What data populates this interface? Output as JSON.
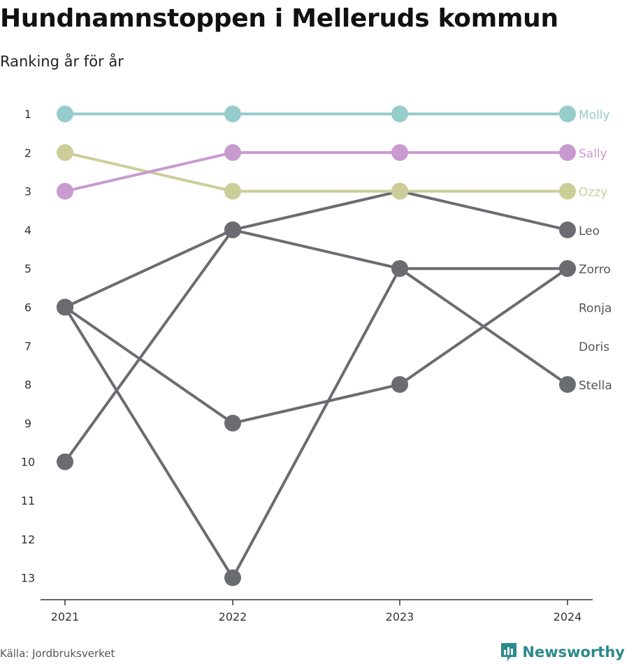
{
  "title": "Hundnamnstoppen i Melleruds kommun",
  "subtitle": "Ranking år för år",
  "source": "Källa: Jordbruksverket",
  "brand": "Newsworthy",
  "chart_data": {
    "type": "line",
    "chart_kind": "bump",
    "x": [
      "2021",
      "2022",
      "2023",
      "2024"
    ],
    "y_ticks": [
      1,
      2,
      3,
      4,
      5,
      6,
      7,
      8,
      9,
      10,
      11,
      12,
      13
    ],
    "ylim": [
      13,
      1
    ],
    "y_reversed": true,
    "grid": false,
    "series": [
      {
        "name": "Leo",
        "values": [
          10,
          4,
          3,
          4
        ],
        "color": "#6b6b72"
      },
      {
        "name": "Zorro",
        "values": [
          6,
          4,
          5,
          5
        ],
        "color": "#6b6b72"
      },
      {
        "name": "Ronja",
        "values": [
          null,
          null,
          null,
          null
        ],
        "color": "#6b6b72"
      },
      {
        "name": "Doris",
        "values": [
          null,
          null,
          null,
          null
        ],
        "color": "#6b6b72"
      },
      {
        "name": "Stella",
        "values": [
          6,
          13,
          5,
          8
        ],
        "color": "#6b6b72"
      },
      {
        "name": "",
        "values": [
          6,
          9,
          8,
          5
        ],
        "color": "#6b6b72"
      },
      {
        "name": "Ozzy",
        "values": [
          2,
          3,
          3,
          3
        ],
        "color": "#cdcd9a"
      },
      {
        "name": "Sally",
        "values": [
          3,
          2,
          2,
          2
        ],
        "color": "#c89ad0"
      },
      {
        "name": "Molly",
        "values": [
          1,
          1,
          1,
          1
        ],
        "color": "#96cccb"
      }
    ],
    "end_labels": [
      {
        "label": "Molly",
        "rank": 1,
        "color": "#96cccb"
      },
      {
        "label": "Sally",
        "rank": 2,
        "color": "#c89ad0"
      },
      {
        "label": "Ozzy",
        "rank": 3,
        "color": "#cdcd9a"
      },
      {
        "label": "Leo",
        "rank": 4,
        "color": "#555555"
      },
      {
        "label": "Zorro",
        "rank": 5,
        "color": "#555555"
      },
      {
        "label": "Ronja",
        "rank": 6,
        "color": "#555555"
      },
      {
        "label": "Doris",
        "rank": 7,
        "color": "#555555"
      },
      {
        "label": "Stella",
        "rank": 8,
        "color": "#555555"
      }
    ]
  }
}
